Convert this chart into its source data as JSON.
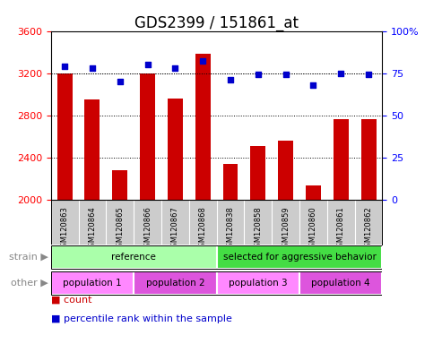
{
  "title": "GDS2399 / 151861_at",
  "samples": [
    "GSM120863",
    "GSM120864",
    "GSM120865",
    "GSM120866",
    "GSM120867",
    "GSM120868",
    "GSM120838",
    "GSM120858",
    "GSM120859",
    "GSM120860",
    "GSM120861",
    "GSM120862"
  ],
  "bar_values": [
    3200,
    2950,
    2280,
    3200,
    2960,
    3380,
    2340,
    2510,
    2560,
    2130,
    2760,
    2760
  ],
  "percentile_values": [
    79,
    78,
    70,
    80,
    78,
    82,
    71,
    74,
    74,
    68,
    75,
    74
  ],
  "bar_color": "#cc0000",
  "dot_color": "#0000cc",
  "ylim_left": [
    2000,
    3600
  ],
  "ylim_right": [
    0,
    100
  ],
  "yticks_left": [
    2000,
    2400,
    2800,
    3200,
    3600
  ],
  "yticks_right": [
    0,
    25,
    50,
    75,
    100
  ],
  "ytick_right_labels": [
    "0",
    "25",
    "50",
    "75",
    "100%"
  ],
  "grid_lines": [
    2400,
    2800,
    3200
  ],
  "strain_groups": [
    {
      "label": "reference",
      "start": 0,
      "end": 6,
      "color": "#aaffaa"
    },
    {
      "label": "selected for aggressive behavior",
      "start": 6,
      "end": 12,
      "color": "#44dd44"
    }
  ],
  "other_groups": [
    {
      "label": "population 1",
      "start": 0,
      "end": 3,
      "color": "#ff88ff"
    },
    {
      "label": "population 2",
      "start": 3,
      "end": 6,
      "color": "#dd55dd"
    },
    {
      "label": "population 3",
      "start": 6,
      "end": 9,
      "color": "#ff88ff"
    },
    {
      "label": "population 4",
      "start": 9,
      "end": 12,
      "color": "#dd55dd"
    }
  ],
  "strain_label": "strain",
  "other_label": "other",
  "legend_count_label": "count",
  "legend_pct_label": "percentile rank within the sample",
  "bar_width": 0.55,
  "bg_color": "#ffffff",
  "tick_area_color": "#cccccc",
  "title_fontsize": 12,
  "axis_fontsize": 8,
  "sample_fontsize": 6,
  "label_fontsize": 8
}
